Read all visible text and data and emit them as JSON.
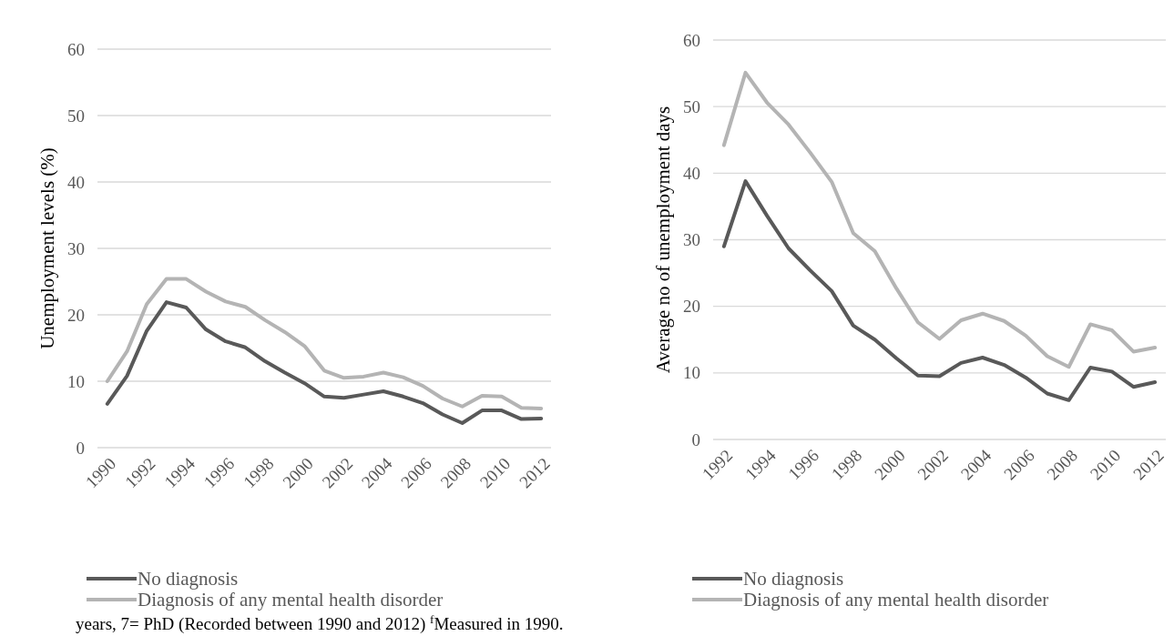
{
  "chart_data": [
    {
      "type": "line",
      "ylabel": "Unemployment levels (%)",
      "categories": [
        "1990",
        null,
        "1992",
        null,
        "1994",
        null,
        "1996",
        null,
        "1998",
        null,
        "2000",
        null,
        "2002",
        null,
        "2004",
        null,
        "2006",
        null,
        "2008",
        null,
        "2010",
        null,
        "2012"
      ],
      "series": [
        {
          "name": "No diagnosis",
          "color": "#595959",
          "values": [
            6.6,
            10.8,
            17.6,
            21.9,
            21.1,
            17.8,
            16.0,
            15.1,
            13.0,
            11.3,
            9.7,
            7.7,
            7.5,
            8.0,
            8.5,
            7.7,
            6.7,
            5.0,
            3.7,
            5.6,
            5.6,
            4.3,
            4.4
          ]
        },
        {
          "name": "Diagnosis of any mental health disorder",
          "color": "#b4b4b4",
          "values": [
            10.0,
            14.5,
            21.6,
            25.4,
            25.4,
            23.5,
            22.0,
            21.2,
            19.2,
            17.4,
            15.3,
            11.6,
            10.5,
            10.7,
            11.3,
            10.6,
            9.3,
            7.4,
            6.2,
            7.8,
            7.7,
            6.0,
            5.9
          ]
        }
      ],
      "ylim": [
        0,
        60
      ],
      "yticks": [
        0,
        10,
        20,
        30,
        40,
        50,
        60
      ],
      "grid": "y",
      "legend": "bottom",
      "marker": "none",
      "annotations": [
        "years, 7= PhD (Recorded between 1990 and 2012) $^{f}$Measured in 1990."
      ]
    },
    {
      "type": "line",
      "ylabel": "Average no of unemployment days",
      "categories": [
        "1992",
        null,
        "1994",
        null,
        "1996",
        null,
        "1998",
        null,
        "2000",
        null,
        "2002",
        null,
        "2004",
        null,
        "2006",
        null,
        "2008",
        null,
        "2010",
        null,
        "2012"
      ],
      "series": [
        {
          "name": "No diagnosis",
          "color": "#595959",
          "values": [
            29.0,
            38.8,
            33.6,
            28.7,
            25.4,
            22.3,
            17.1,
            15.0,
            12.2,
            9.6,
            9.5,
            11.5,
            12.3,
            11.2,
            9.3,
            6.9,
            5.9,
            10.8,
            10.2,
            7.9,
            8.6
          ]
        },
        {
          "name": "Diagnosis of any mental health disorder",
          "color": "#b4b4b4",
          "values": [
            44.2,
            55.1,
            50.6,
            47.3,
            43.1,
            38.7,
            31.0,
            28.3,
            22.7,
            17.6,
            15.1,
            17.9,
            18.9,
            17.8,
            15.6,
            12.5,
            10.9,
            17.3,
            16.4,
            13.2,
            13.8
          ]
        }
      ],
      "ylim": [
        0,
        60
      ],
      "yticks": [
        0,
        10,
        20,
        30,
        40,
        50,
        60
      ],
      "grid": "y",
      "legend": "bottom",
      "marker": "none"
    }
  ]
}
